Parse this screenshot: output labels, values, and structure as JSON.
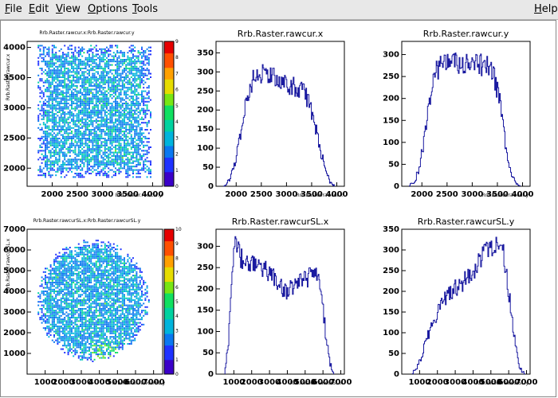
{
  "menu": {
    "items": [
      {
        "label": "File",
        "ul": "F",
        "rest": "ile"
      },
      {
        "label": "Edit",
        "ul": "E",
        "rest": "dit"
      },
      {
        "label": "View",
        "ul": "V",
        "rest": "iew"
      },
      {
        "label": "Options",
        "ul": "O",
        "rest": "ptions"
      },
      {
        "label": "Tools",
        "ul": "T",
        "rest": "ools"
      }
    ],
    "help": {
      "label": "Help",
      "ul": "H",
      "rest": "elp"
    }
  },
  "colors": {
    "histogram_line": "#1a1aa0",
    "menubar_bg": "#e8e8e8",
    "canvas_bg": "#ffffff"
  },
  "chart_data": [
    {
      "id": "p1",
      "type": "heatmap",
      "title": "Rrb.Raster.rawcur.x:Rrb.Raster.rawcur.y",
      "xlabel": "Rrb.Raster.rawcur.y",
      "ylabel": "Rrb.Raster.rawcur.x",
      "xlim": [
        1500,
        4200
      ],
      "ylim": [
        1700,
        4100
      ],
      "xticks": [
        2000,
        2500,
        3000,
        3500,
        4000
      ],
      "yticks_shown": [
        "2000",
        "2500",
        "3000",
        "3500",
        "4000"
      ],
      "z_palette_ticks": [
        0,
        1,
        2,
        3,
        4,
        5,
        6,
        7,
        8,
        9
      ],
      "shape": "rectangle",
      "region_x": [
        1700,
        3950
      ],
      "region_y": [
        1850,
        4050
      ]
    },
    {
      "id": "p2",
      "type": "line",
      "title": "Rrb.Raster.rawcur.x",
      "xlabel": "Rrb.Raster.rawcur.x",
      "xlim": [
        1600,
        4150
      ],
      "ylim": [
        0,
        380
      ],
      "xticks": [
        2000,
        2500,
        3000,
        3500,
        4000
      ],
      "yticks": [
        0,
        50,
        100,
        150,
        200,
        250,
        300,
        350
      ],
      "x": [
        1750,
        1850,
        1950,
        2050,
        2150,
        2250,
        2350,
        2450,
        2550,
        2650,
        2750,
        2850,
        2950,
        3050,
        3150,
        3250,
        3350,
        3450,
        3550,
        3650,
        3750,
        3850,
        3950
      ],
      "y": [
        2,
        12,
        45,
        110,
        190,
        250,
        285,
        295,
        300,
        290,
        285,
        275,
        270,
        265,
        260,
        255,
        245,
        220,
        170,
        110,
        55,
        15,
        2
      ]
    },
    {
      "id": "p3",
      "type": "line",
      "title": "Rrb.Raster.rawcur.y",
      "xlabel": "Rrb.Raster.rawcur.y",
      "xlim": [
        1600,
        4150
      ],
      "ylim": [
        0,
        330
      ],
      "xticks": [
        2000,
        2500,
        3000,
        3500,
        4000
      ],
      "yticks": [
        0,
        50,
        100,
        150,
        200,
        250,
        300
      ],
      "x": [
        1750,
        1850,
        1950,
        2050,
        2150,
        2250,
        2350,
        2450,
        2550,
        2650,
        2750,
        2850,
        2950,
        3050,
        3150,
        3250,
        3350,
        3450,
        3550,
        3650,
        3750,
        3850,
        3950
      ],
      "y": [
        2,
        10,
        40,
        110,
        200,
        255,
        275,
        280,
        285,
        280,
        275,
        275,
        275,
        275,
        275,
        275,
        270,
        245,
        190,
        105,
        40,
        8,
        1
      ]
    },
    {
      "id": "p4",
      "type": "heatmap",
      "title": "Rrb.Raster.rawcurSL.x:Rrb.Raster.rawcurSL.y",
      "xlabel": "Rrb.Raster.rawcurSL.y",
      "ylabel": "Rrb.Raster.rawcurSL.x",
      "xlim": [
        0,
        7500
      ],
      "ylim": [
        0,
        7000
      ],
      "xticks": [
        1000,
        2000,
        3000,
        4000,
        5000,
        6000,
        7000
      ],
      "yticks_shown": [
        "1000",
        "2000",
        "3000",
        "4000",
        "5000",
        "6000",
        "7000"
      ],
      "z_palette_ticks": [
        0,
        1,
        2,
        3,
        4,
        5,
        6,
        7,
        8,
        9,
        10
      ],
      "shape": "disk",
      "center": [
        3600,
        3600
      ],
      "radius": 3100
    },
    {
      "id": "p5",
      "type": "line",
      "title": "Rrb.Raster.rawcurSL.x",
      "xlabel": "Rrb.Raster.rawcurSL.x",
      "xlim": [
        0,
        7200
      ],
      "ylim": [
        0,
        340
      ],
      "xticks": [
        1000,
        2000,
        3000,
        4000,
        5000,
        6000,
        7000
      ],
      "yticks": [
        0,
        50,
        100,
        150,
        200,
        250,
        300
      ],
      "x": [
        500,
        700,
        900,
        1100,
        1300,
        1600,
        2000,
        2400,
        2800,
        3200,
        3600,
        4000,
        4400,
        4800,
        5200,
        5600,
        5800,
        6000,
        6200,
        6400,
        6600
      ],
      "y": [
        2,
        80,
        260,
        320,
        285,
        250,
        260,
        255,
        240,
        225,
        205,
        195,
        205,
        215,
        225,
        230,
        210,
        150,
        80,
        25,
        2
      ]
    },
    {
      "id": "p6",
      "type": "line",
      "title": "Rrb.Raster.rawcurSL.y",
      "xlabel": "Rrb.Raster.rawcurSL.y",
      "xlim": [
        0,
        7200
      ],
      "ylim": [
        0,
        350
      ],
      "xticks": [
        1000,
        2000,
        3000,
        4000,
        5000,
        6000,
        7000
      ],
      "yticks": [
        0,
        50,
        100,
        150,
        200,
        250,
        300,
        350
      ],
      "x": [
        600,
        900,
        1200,
        1500,
        1800,
        2100,
        2400,
        2700,
        3000,
        3300,
        3600,
        3900,
        4200,
        4500,
        4800,
        5100,
        5400,
        5700,
        6000,
        6300,
        6600,
        6900
      ],
      "y": [
        2,
        20,
        55,
        100,
        130,
        155,
        180,
        200,
        210,
        220,
        230,
        240,
        260,
        280,
        295,
        305,
        310,
        290,
        200,
        90,
        15,
        1
      ]
    }
  ]
}
